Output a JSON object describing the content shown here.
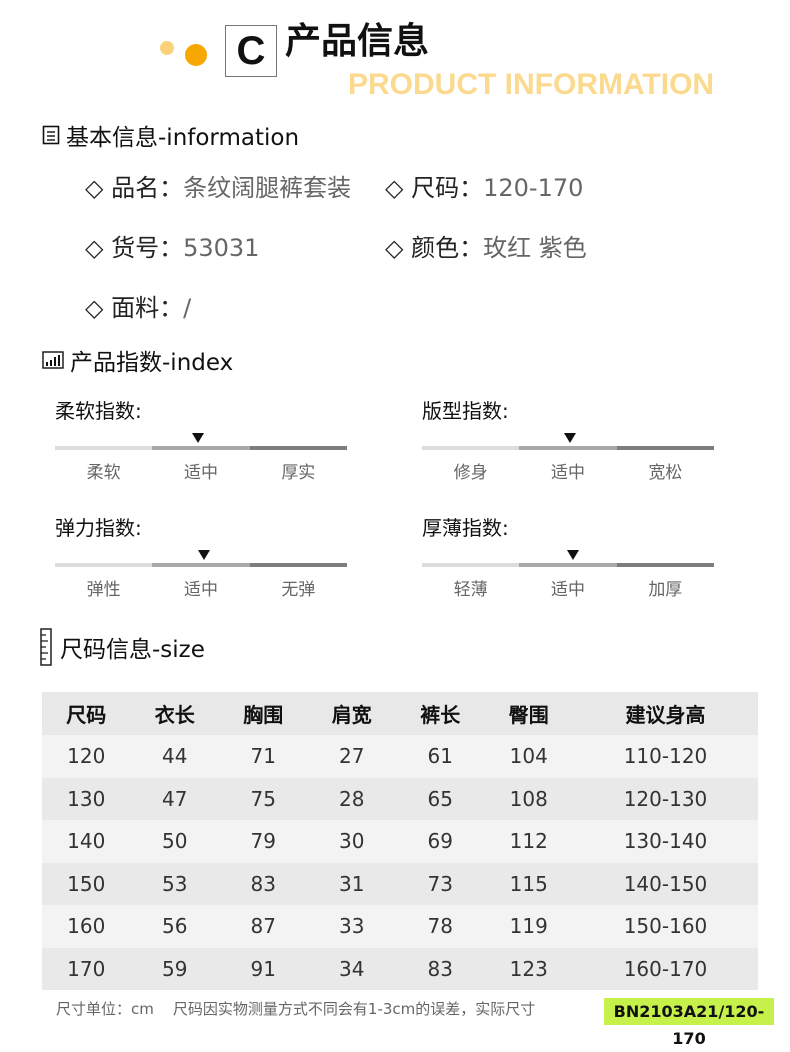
{
  "header": {
    "letter": "C",
    "title": "产品信息",
    "subtitle": "PRODUCT INFORMATION",
    "dot_colors": [
      "#fbd27a",
      "#f6a800"
    ]
  },
  "basic": {
    "heading": "基本信息-information",
    "items": [
      {
        "label": "品名：",
        "value": "条纹阔腿裤套装"
      },
      {
        "label": "尺码：",
        "value": "120-170"
      },
      {
        "label": "货号：",
        "value": "53031"
      },
      {
        "label": "颜色：",
        "value": "玫红 紫色"
      },
      {
        "label": "面料：",
        "value": "/"
      }
    ]
  },
  "index": {
    "heading": "产品指数-index",
    "gauges": [
      {
        "label": "柔软指数:",
        "ticks": [
          "柔软",
          "适中",
          "厚实"
        ],
        "selected": "适中",
        "position_pct": 49
      },
      {
        "label": "版型指数:",
        "ticks": [
          "修身",
          "适中",
          "宽松"
        ],
        "selected": "适中",
        "position_pct": 50.7
      },
      {
        "label": "弹力指数:",
        "ticks": [
          "弹性",
          "适中",
          "无弹"
        ],
        "selected": "适中",
        "position_pct": 51
      },
      {
        "label": "厚薄指数:",
        "ticks": [
          "轻薄",
          "适中",
          "加厚"
        ],
        "selected": "适中",
        "position_pct": 51.7
      }
    ]
  },
  "size": {
    "heading": "尺码信息-size",
    "columns": [
      "尺码",
      "衣长",
      "胸围",
      "肩宽",
      "裤长",
      "臀围",
      "建议身高"
    ],
    "rows": [
      [
        "120",
        "44",
        "71",
        "27",
        "61",
        "104",
        "110-120"
      ],
      [
        "130",
        "47",
        "75",
        "28",
        "65",
        "108",
        "120-130"
      ],
      [
        "140",
        "50",
        "79",
        "30",
        "69",
        "112",
        "130-140"
      ],
      [
        "150",
        "53",
        "83",
        "31",
        "73",
        "115",
        "140-150"
      ],
      [
        "160",
        "56",
        "87",
        "33",
        "78",
        "119",
        "150-160"
      ],
      [
        "170",
        "59",
        "91",
        "34",
        "83",
        "123",
        "160-170"
      ]
    ],
    "footnote": "尺寸单位：cm    尺码因实物测量方式不同会有1-3cm的误差，实际尺寸",
    "badge": "BN2103A21/120-170",
    "badge_color": "#c6f04a"
  }
}
